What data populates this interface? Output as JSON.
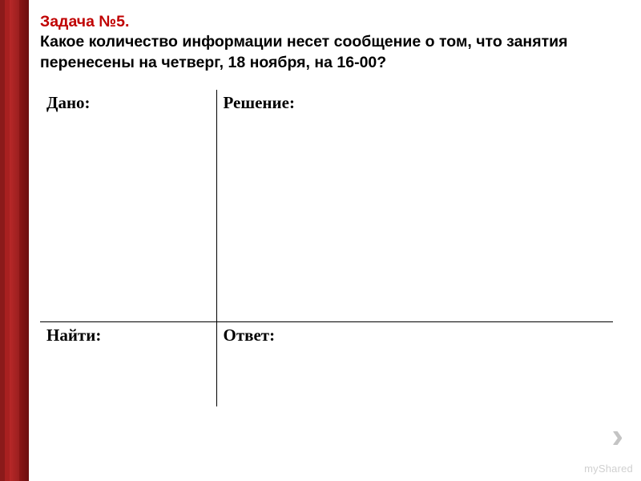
{
  "header": {
    "task_label": "Задача №5.",
    "question": "Какое количество информации несет сообщение о том, что занятия перенесены на четверг, 18 ноября, на 16-00?"
  },
  "cells": {
    "given_label": "Дано:",
    "solution_label": "Решение:",
    "find_label": "Найти:",
    "answer_label": "Ответ:"
  },
  "nav": {
    "arrow": "›"
  },
  "watermark": {
    "text": "myShared"
  },
  "colors": {
    "accent": "#c00000",
    "text": "#000000",
    "border": "#000000",
    "arrow": "#c4c4c4",
    "watermark": "rgba(150,150,150,0.45)"
  }
}
